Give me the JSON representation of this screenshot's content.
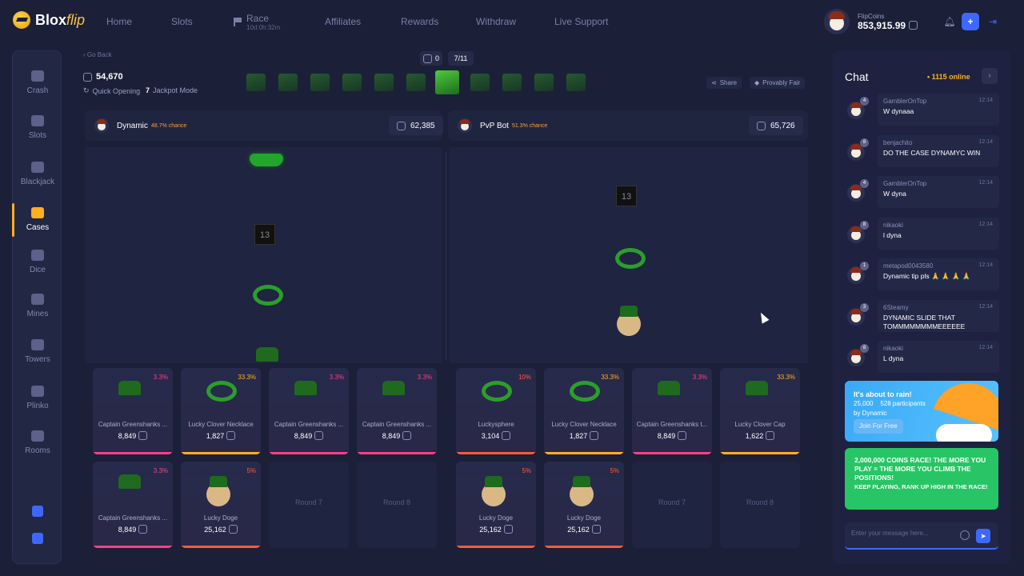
{
  "header": {
    "logo_main": "Blox",
    "logo_accent": "flip",
    "nav": [
      {
        "label": "Home"
      },
      {
        "label": "Slots"
      },
      {
        "label": "Race",
        "timer": "10d:0h:32m"
      },
      {
        "label": "Affiliates"
      },
      {
        "label": "Rewards"
      },
      {
        "label": "Withdraw"
      },
      {
        "label": "Live Support"
      }
    ],
    "wallet_label": "FlipCoins",
    "wallet_amount": "853,915.99",
    "icons": [
      "bell-icon",
      "plus-icon",
      "logout-icon"
    ]
  },
  "sidebar": {
    "items": [
      {
        "label": "Crash",
        "icon": "rocket-icon"
      },
      {
        "label": "Slots",
        "icon": "cherry-icon"
      },
      {
        "label": "Blackjack",
        "icon": "cards-icon"
      },
      {
        "label": "Cases",
        "icon": "chest-icon",
        "active": true
      },
      {
        "label": "Dice",
        "icon": "dice-icon"
      },
      {
        "label": "Mines",
        "icon": "gem-icon"
      },
      {
        "label": "Towers",
        "icon": "tower-icon"
      },
      {
        "label": "Plinko",
        "icon": "plinko-icon"
      },
      {
        "label": "Rooms",
        "icon": "mic-icon"
      }
    ]
  },
  "battle": {
    "go_back": "‹ Go Back",
    "coins_counter": "0",
    "round_progress": "7/11",
    "balance": "54,670",
    "quick_opening": "Quick Opening",
    "jackpot_mode": "Jackpot Mode",
    "share": "Share",
    "provably_fair": "Provably Fair",
    "player1": {
      "name": "Dynamic",
      "chance": "48.7% chance",
      "value": "62,385"
    },
    "player2": {
      "name": "PvP Bot",
      "chance": "51.3% chance",
      "value": "65,726"
    },
    "p1_cards": [
      {
        "name": "Captain Greenshanks ...",
        "value": "8,849",
        "pct": "3.3%",
        "color": "#ff3f8a"
      },
      {
        "name": "Lucky Clover Necklace",
        "value": "1,827",
        "pct": "33.3%",
        "color": "#ffb020"
      },
      {
        "name": "Captain Greenshanks ...",
        "value": "8,849",
        "pct": "3.3%",
        "color": "#ff3f8a"
      },
      {
        "name": "Captain Greenshanks ...",
        "value": "8,849",
        "pct": "3.3%",
        "color": "#ff3f8a"
      },
      {
        "name": "Captain Greenshanks ...",
        "value": "8,849",
        "pct": "3.3%",
        "color": "#ff3f8a"
      },
      {
        "name": "Lucky Doge",
        "value": "25,162",
        "pct": "5%",
        "color": "#ff5a3c"
      },
      {
        "round": "Round 7"
      },
      {
        "round": "Round 8"
      }
    ],
    "p2_cards": [
      {
        "name": "Luckysphere",
        "value": "3,104",
        "pct": "10%",
        "color": "#ff5a3c"
      },
      {
        "name": "Lucky Clover Necklace",
        "value": "1,827",
        "pct": "33.3%",
        "color": "#ffb020"
      },
      {
        "name": "Captain Greenshanks t...",
        "value": "8,849",
        "pct": "3.3%",
        "color": "#ff3f8a"
      },
      {
        "name": "Lucky Clover Cap",
        "value": "1,622",
        "pct": "33.3%",
        "color": "#ffb020"
      },
      {
        "name": "Lucky Doge",
        "value": "25,162",
        "pct": "5%",
        "color": "#ff5a3c"
      },
      {
        "name": "Lucky Doge",
        "value": "25,162",
        "pct": "5%",
        "color": "#ff5a3c"
      },
      {
        "round": "Round 7"
      },
      {
        "round": "Round 8"
      }
    ]
  },
  "chat": {
    "title": "Chat",
    "online": "1115 online",
    "messages": [
      {
        "user": "GamblerOnTop",
        "time": "12:14",
        "text": "W dynaaa",
        "level": "4"
      },
      {
        "user": "benjachito",
        "time": "12:14",
        "text": "DO THE CASE DYNAMYC WIN",
        "level": "8"
      },
      {
        "user": "GamblerOnTop",
        "time": "12:14",
        "text": "W dyna",
        "level": "4"
      },
      {
        "user": "nikaoki",
        "time": "12:14",
        "text": "l dyna",
        "level": "8"
      },
      {
        "user": "metapod0043580",
        "time": "12:14",
        "text": "Dynamic tip pls 🙏 🙏 🙏 🙏",
        "level": "1"
      },
      {
        "user": "6Steamy",
        "time": "12:14",
        "text": "DYNAMIC SLIDE THAT TOMMMMMMMMEEEEEE",
        "level": "3"
      },
      {
        "user": "nikaoki",
        "time": "12:14",
        "text": "L dyna",
        "level": "8"
      }
    ],
    "rain": {
      "title": "It's about to rain!",
      "amount": "25,000",
      "participants": "528 participants",
      "by": "by Dynamic",
      "button": "Join For Free"
    },
    "race": {
      "headline": "2,000,000 COINS RACE! THE MORE YOU PLAY = THE MORE YOU CLIMB THE POSITIONS!",
      "sub": "KEEP PLAYING, RANK UP HIGH IN THE RACE!"
    },
    "input_placeholder": "Enter your message here..."
  }
}
